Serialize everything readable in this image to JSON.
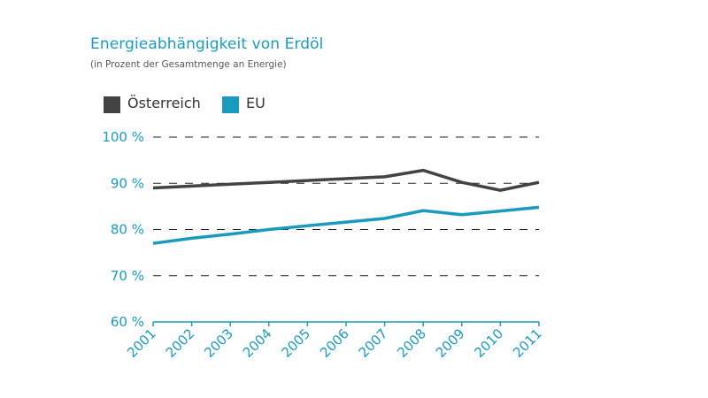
{
  "chart_data": {
    "type": "line",
    "title": "Energieabhängigkeit von Erdöl",
    "subtitle": "(in Prozent der Gesamtmenge an Energie)",
    "xlabel": "",
    "ylabel": "",
    "x": [
      "2001",
      "2002",
      "2003",
      "2004",
      "2005",
      "2006",
      "2007",
      "2008",
      "2009",
      "2010",
      "2011"
    ],
    "ylim": [
      60,
      100
    ],
    "yticks": [
      60,
      70,
      80,
      90,
      100
    ],
    "ytick_labels": [
      "60 %",
      "70 %",
      "80 %",
      "90 %",
      "100 %"
    ],
    "grid": "horizontal dashed",
    "legend": "top-left",
    "series": [
      {
        "name": "Österreich",
        "color": "#434343",
        "values": [
          89.0,
          89.4,
          89.8,
          90.2,
          90.6,
          91.0,
          91.4,
          92.8,
          90.2,
          88.5,
          90.2
        ]
      },
      {
        "name": "EU",
        "color": "#1a9bbd",
        "values": [
          77.0,
          78.1,
          79.0,
          80.0,
          80.8,
          81.6,
          82.4,
          84.1,
          83.2,
          84.0,
          84.8
        ]
      }
    ]
  }
}
